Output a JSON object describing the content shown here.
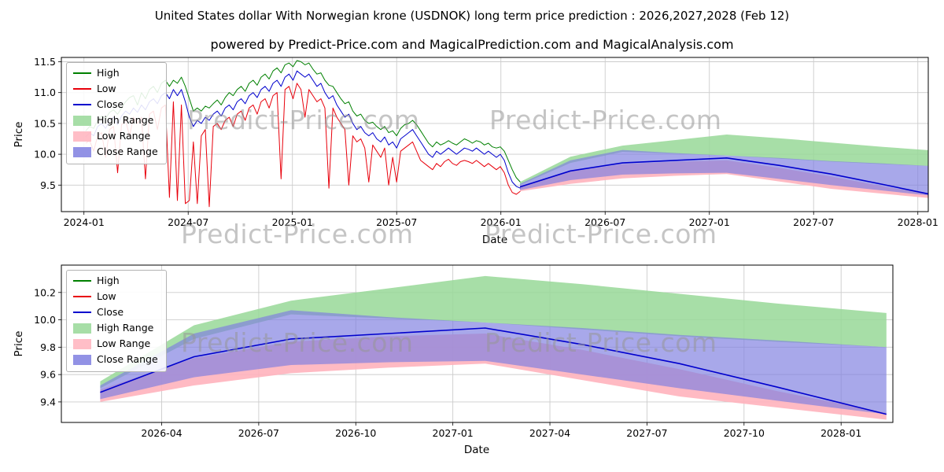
{
  "watermark": {
    "text": "Predict-Price.com"
  },
  "colors": {
    "high": "#008000",
    "low": "#e8000b",
    "close": "#0000cd",
    "high_range": "#98d898",
    "low_range": "#ffb3bd",
    "close_range": "#7f7fe0",
    "grid": "#cccccc",
    "spine": "#000000"
  },
  "chart_data": {
    "type": "line",
    "title": "United States dollar With Norwegian krone (USDNOK) long term price prediction : 2026,2027,2028 (Feb 12)",
    "subtitle": "powered by Predict-Price.com and MagicalPrediction.com and MagicalAnalysis.com",
    "x_unit": "months_since_2024-01",
    "legend": [
      {
        "label": "High",
        "type": "line",
        "color_key": "high"
      },
      {
        "label": "Low",
        "type": "line",
        "color_key": "low"
      },
      {
        "label": "Close",
        "type": "line",
        "color_key": "close"
      },
      {
        "label": "High Range",
        "type": "patch",
        "color_key": "high_range"
      },
      {
        "label": "Low Range",
        "type": "patch",
        "color_key": "low_range"
      },
      {
        "label": "Close Range",
        "type": "patch",
        "color_key": "close_range"
      }
    ],
    "history": {
      "x_start": 0.1,
      "x_step": 0.2295,
      "close": [
        10.28,
        10.35,
        10.3,
        10.45,
        10.5,
        10.42,
        10.55,
        10.6,
        10.48,
        10.62,
        10.7,
        10.65,
        10.75,
        10.68,
        10.8,
        10.72,
        10.85,
        10.9,
        10.82,
        10.95,
        11.0,
        10.9,
        11.05,
        10.95,
        11.05,
        10.85,
        10.6,
        10.45,
        10.55,
        10.5,
        10.6,
        10.55,
        10.65,
        10.7,
        10.62,
        10.75,
        10.8,
        10.72,
        10.85,
        10.9,
        10.82,
        10.95,
        11.0,
        10.92,
        11.05,
        11.1,
        11.02,
        11.15,
        11.2,
        11.1,
        11.25,
        11.3,
        11.2,
        11.35,
        11.3,
        11.25,
        11.3,
        11.2,
        11.1,
        11.15,
        11.0,
        10.9,
        10.95,
        10.8,
        10.7,
        10.6,
        10.65,
        10.5,
        10.4,
        10.45,
        10.35,
        10.3,
        10.35,
        10.25,
        10.2,
        10.28,
        10.15,
        10.2,
        10.1,
        10.25,
        10.3,
        10.35,
        10.4,
        10.3,
        10.2,
        10.1,
        10.0,
        9.95,
        10.05,
        10.0,
        10.05,
        10.1,
        10.05,
        10.0,
        10.05,
        10.1,
        10.08,
        10.05,
        10.1,
        10.05,
        10.0,
        10.05,
        10.0,
        9.95,
        10.0,
        9.9,
        9.7,
        9.55,
        9.48,
        9.45
      ],
      "high": [
        10.38,
        10.45,
        10.42,
        10.55,
        10.62,
        10.58,
        10.68,
        10.72,
        10.65,
        10.75,
        10.85,
        10.92,
        10.95,
        10.8,
        11.0,
        10.9,
        11.05,
        11.1,
        11.0,
        11.15,
        11.2,
        11.1,
        11.2,
        11.15,
        11.25,
        11.1,
        10.9,
        10.7,
        10.75,
        10.7,
        10.78,
        10.75,
        10.82,
        10.88,
        10.8,
        10.92,
        11.0,
        10.95,
        11.05,
        11.1,
        11.02,
        11.15,
        11.2,
        11.12,
        11.25,
        11.3,
        11.22,
        11.35,
        11.4,
        11.32,
        11.45,
        11.48,
        11.42,
        11.52,
        11.5,
        11.45,
        11.48,
        11.38,
        11.3,
        11.32,
        11.2,
        11.12,
        11.1,
        11.0,
        10.9,
        10.82,
        10.85,
        10.7,
        10.62,
        10.65,
        10.55,
        10.5,
        10.52,
        10.45,
        10.4,
        10.45,
        10.35,
        10.38,
        10.3,
        10.42,
        10.48,
        10.5,
        10.55,
        10.48,
        10.38,
        10.28,
        10.18,
        10.12,
        10.2,
        10.15,
        10.18,
        10.22,
        10.18,
        10.15,
        10.2,
        10.25,
        10.22,
        10.18,
        10.22,
        10.2,
        10.15,
        10.18,
        10.12,
        10.1,
        10.12,
        10.05,
        9.9,
        9.75,
        9.62,
        9.55
      ],
      "low": [
        10.18,
        10.22,
        10.05,
        10.3,
        10.35,
        9.95,
        10.4,
        10.45,
        9.7,
        10.48,
        10.55,
        10.3,
        10.6,
        10.5,
        10.6,
        9.6,
        10.65,
        10.7,
        10.4,
        10.75,
        10.8,
        9.3,
        10.85,
        9.25,
        10.8,
        9.2,
        9.25,
        10.2,
        9.2,
        10.3,
        10.4,
        9.15,
        10.45,
        10.5,
        10.4,
        10.55,
        10.6,
        10.45,
        10.65,
        10.7,
        10.55,
        10.75,
        10.8,
        10.65,
        10.85,
        10.9,
        10.75,
        10.95,
        11.0,
        9.6,
        11.05,
        11.1,
        10.9,
        11.15,
        11.05,
        10.6,
        11.05,
        10.95,
        10.85,
        10.9,
        10.75,
        9.45,
        10.75,
        10.6,
        10.5,
        10.4,
        9.5,
        10.3,
        10.2,
        10.25,
        10.1,
        9.55,
        10.15,
        10.05,
        9.95,
        10.1,
        9.5,
        9.95,
        9.55,
        10.05,
        10.1,
        10.15,
        10.2,
        10.05,
        9.9,
        9.85,
        9.8,
        9.75,
        9.85,
        9.8,
        9.88,
        9.92,
        9.85,
        9.82,
        9.88,
        9.9,
        9.88,
        9.85,
        9.9,
        9.85,
        9.8,
        9.85,
        9.8,
        9.75,
        9.8,
        9.7,
        9.5,
        9.38,
        9.35,
        9.4
      ]
    },
    "prediction": {
      "x": [
        25.1,
        28,
        31,
        34,
        37,
        40,
        43,
        46,
        49.4
      ],
      "close": [
        9.47,
        9.73,
        9.86,
        9.9,
        9.94,
        9.82,
        9.68,
        9.51,
        9.31
      ],
      "high_top": [
        9.55,
        9.96,
        10.14,
        10.23,
        10.32,
        10.26,
        10.19,
        10.12,
        10.05
      ],
      "high_bottom": [
        9.5,
        9.86,
        10.04,
        10.01,
        9.98,
        9.93,
        9.88,
        9.84,
        9.8
      ],
      "close_top": [
        9.52,
        9.9,
        10.07,
        10.02,
        9.98,
        9.94,
        9.89,
        9.85,
        9.8
      ],
      "close_bottom": [
        9.42,
        9.58,
        9.67,
        9.69,
        9.7,
        9.6,
        9.5,
        9.41,
        9.31
      ],
      "low_top": [
        9.49,
        9.72,
        9.84,
        9.88,
        9.9,
        9.78,
        9.64,
        9.48,
        9.32
      ],
      "low_bottom": [
        9.4,
        9.52,
        9.61,
        9.65,
        9.68,
        9.56,
        9.44,
        9.36,
        9.27
      ]
    },
    "charts": [
      {
        "xlabel": "Date",
        "ylabel": "Price",
        "xlim": [
          -1.3,
          48.6
        ],
        "ylim": [
          9.07,
          11.57
        ],
        "show_history": true,
        "xticks": [
          {
            "v": 0,
            "label": "2024-01"
          },
          {
            "v": 6,
            "label": "2024-07"
          },
          {
            "v": 12,
            "label": "2025-01"
          },
          {
            "v": 18,
            "label": "2025-07"
          },
          {
            "v": 24,
            "label": "2026-01"
          },
          {
            "v": 30,
            "label": "2026-07"
          },
          {
            "v": 36,
            "label": "2027-01"
          },
          {
            "v": 42,
            "label": "2027-07"
          },
          {
            "v": 48,
            "label": "2028-01"
          }
        ],
        "yticks": [
          {
            "v": 9.5,
            "label": "9.5"
          },
          {
            "v": 10.0,
            "label": "10.0"
          },
          {
            "v": 10.5,
            "label": "10.5"
          },
          {
            "v": 11.0,
            "label": "11.0"
          },
          {
            "v": 11.5,
            "label": "11.5"
          }
        ]
      },
      {
        "xlabel": "Date",
        "ylabel": "Price",
        "xlim": [
          23.9,
          49.6
        ],
        "ylim": [
          9.25,
          10.4
        ],
        "show_history": false,
        "xticks": [
          {
            "v": 27,
            "label": "2026-04"
          },
          {
            "v": 30,
            "label": "2026-07"
          },
          {
            "v": 33,
            "label": "2026-10"
          },
          {
            "v": 36,
            "label": "2027-01"
          },
          {
            "v": 39,
            "label": "2027-04"
          },
          {
            "v": 42,
            "label": "2027-07"
          },
          {
            "v": 45,
            "label": "2027-10"
          },
          {
            "v": 48,
            "label": "2028-01"
          }
        ],
        "yticks": [
          {
            "v": 9.4,
            "label": "9.4"
          },
          {
            "v": 9.6,
            "label": "9.6"
          },
          {
            "v": 9.8,
            "label": "9.8"
          },
          {
            "v": 10.0,
            "label": "10.0"
          },
          {
            "v": 10.2,
            "label": "10.2"
          }
        ]
      }
    ]
  }
}
